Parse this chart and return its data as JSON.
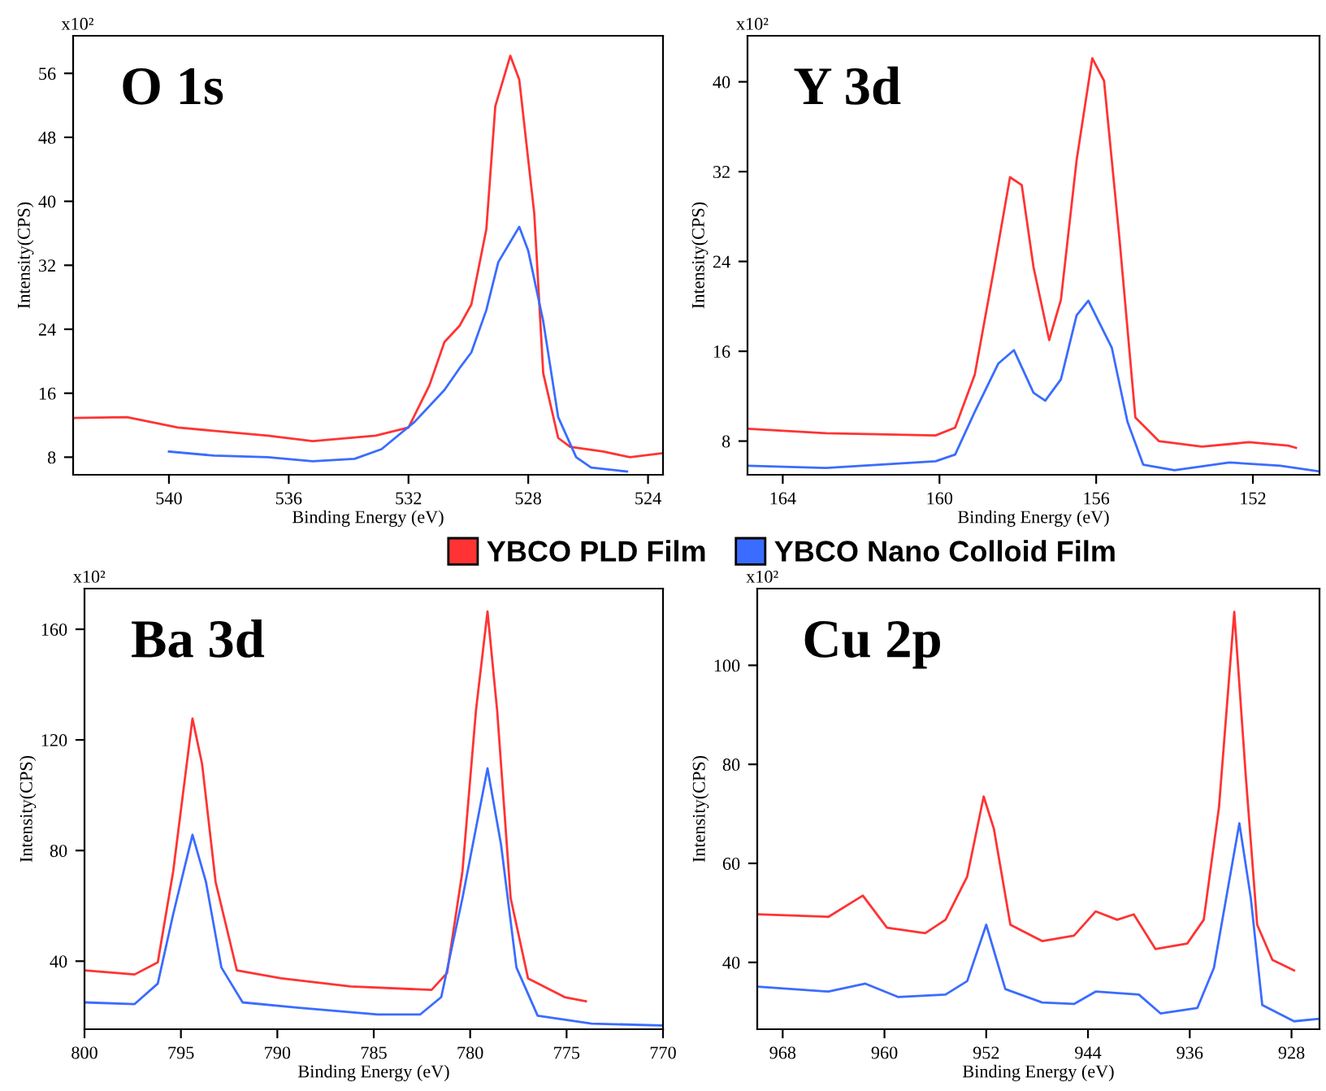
{
  "chart_data": [
    {
      "type": "line",
      "title": "O 1s",
      "xlabel": "Binding Energy (eV)",
      "ylabel": "Intensity(CPS)",
      "annotations": [
        "x10²"
      ],
      "xlim": [
        543.2,
        523.5
      ],
      "xticks": [
        540,
        536,
        532,
        528,
        524
      ],
      "ylim": [
        5.8,
        60.7
      ],
      "yticks": [
        8,
        16,
        24,
        32,
        40,
        48,
        56
      ],
      "series": [
        {
          "color": "#ff3333",
          "x": [
            543.2,
            541.4,
            539.7,
            536.7,
            535.2,
            533.1,
            532.0,
            531.3,
            530.8,
            530.3,
            529.9,
            529.4,
            529.1,
            528.6,
            528.3,
            527.8,
            527.5,
            527.0,
            526.6,
            525.5,
            524.6,
            523.5
          ],
          "values": [
            12.9,
            13.0,
            11.7,
            10.7,
            10.0,
            10.7,
            11.7,
            17.0,
            22.4,
            24.4,
            27.1,
            36.5,
            51.9,
            58.2,
            55.2,
            38.5,
            18.5,
            10.4,
            9.3,
            8.7,
            8.0,
            8.5
          ]
        },
        {
          "color": "#3a6cff",
          "x": [
            540.0,
            538.5,
            536.7,
            535.2,
            533.8,
            532.9,
            531.8,
            530.8,
            530.3,
            529.9,
            529.4,
            529.0,
            528.3,
            528.0,
            527.5,
            527.0,
            526.4,
            525.9,
            524.7
          ],
          "values": [
            8.7,
            8.2,
            8.0,
            7.5,
            7.8,
            9.0,
            12.4,
            16.4,
            19.1,
            21.1,
            26.4,
            32.4,
            36.8,
            33.8,
            25.0,
            13.0,
            8.0,
            6.7,
            6.2
          ]
        }
      ]
    },
    {
      "type": "line",
      "title": "Y 3d",
      "xlabel": "Binding Energy (eV)",
      "ylabel": "Intensity(CPS)",
      "annotations": [
        "x10²"
      ],
      "xlim": [
        164.9,
        150.3
      ],
      "xticks": [
        164,
        160,
        156,
        152
      ],
      "ylim": [
        5.0,
        44.1
      ],
      "yticks": [
        8,
        16,
        24,
        32,
        40
      ],
      "series": [
        {
          "color": "#ff3333",
          "x": [
            164.9,
            162.9,
            160.1,
            159.6,
            159.1,
            158.6,
            158.2,
            157.9,
            157.6,
            157.2,
            156.9,
            156.5,
            156.1,
            155.8,
            155.4,
            155.0,
            154.4,
            153.3,
            152.1,
            151.1,
            150.9
          ],
          "values": [
            9.1,
            8.7,
            8.5,
            9.2,
            13.9,
            23.5,
            31.5,
            30.8,
            23.5,
            17.0,
            20.6,
            33.0,
            42.1,
            40.1,
            25.8,
            10.1,
            8.0,
            7.5,
            7.9,
            7.6,
            7.4
          ]
        },
        {
          "color": "#3a6cff",
          "x": [
            164.9,
            162.9,
            160.1,
            159.6,
            159.1,
            158.5,
            158.1,
            157.6,
            157.3,
            156.9,
            156.5,
            156.2,
            155.6,
            155.2,
            154.8,
            154.0,
            152.6,
            151.3,
            150.3
          ],
          "values": [
            5.8,
            5.6,
            6.2,
            6.8,
            10.6,
            14.9,
            16.1,
            12.3,
            11.6,
            13.5,
            19.2,
            20.5,
            16.3,
            9.7,
            5.9,
            5.4,
            6.1,
            5.8,
            5.3
          ]
        }
      ]
    },
    {
      "type": "line",
      "title": "Ba 3d",
      "xlabel": "Binding Energy (eV)",
      "ylabel": "Intensity(CPS)",
      "annotations": [
        "x10²"
      ],
      "legend": "top",
      "xlim": [
        800,
        770
      ],
      "xticks": [
        800,
        795,
        790,
        785,
        780,
        775,
        770
      ],
      "ylim": [
        15.4,
        174.7
      ],
      "yticks": [
        40,
        80,
        120,
        160
      ],
      "series": [
        {
          "name": "YBCO PLD Film",
          "color": "#ff3333",
          "x": [
            800.0,
            797.4,
            796.2,
            795.4,
            794.7,
            794.4,
            793.9,
            793.2,
            792.1,
            789.8,
            786.2,
            782.0,
            781.2,
            780.4,
            779.7,
            779.1,
            778.6,
            777.9,
            777.0,
            775.1,
            774.0
          ],
          "values": [
            36.7,
            35.2,
            39.6,
            72.5,
            111.2,
            127.7,
            111.2,
            68.6,
            36.7,
            33.8,
            30.9,
            29.6,
            35.7,
            72.5,
            130.6,
            166.4,
            130.6,
            62.8,
            33.8,
            27.0,
            25.5
          ]
        },
        {
          "name": "YBCO Nano Colloid Film",
          "color": "#3a6cff",
          "x": [
            800.0,
            797.4,
            796.2,
            795.4,
            794.4,
            793.7,
            792.9,
            791.8,
            789.0,
            784.8,
            782.6,
            781.5,
            780.4,
            779.1,
            778.4,
            777.6,
            776.5,
            773.7,
            770.1
          ],
          "values": [
            25.1,
            24.5,
            31.9,
            57.0,
            85.7,
            68.6,
            37.7,
            25.1,
            23.2,
            20.7,
            20.7,
            27.0,
            62.8,
            109.7,
            82.2,
            37.7,
            20.3,
            17.4,
            16.8
          ]
        }
      ]
    },
    {
      "type": "line",
      "title": "Cu 2p",
      "xlabel": "Binding Energy (eV)",
      "ylabel": "Intensity(CPS)",
      "annotations": [
        "x10²"
      ],
      "xlim": [
        970.0,
        925.8
      ],
      "xticks": [
        968,
        960,
        952,
        944,
        936,
        928
      ],
      "ylim": [
        26.5,
        115.5
      ],
      "yticks": [
        40,
        60,
        80,
        100
      ],
      "series": [
        {
          "color": "#ff3333",
          "x": [
            970.0,
            964.4,
            961.7,
            959.8,
            956.8,
            955.2,
            953.5,
            952.2,
            951.4,
            950.1,
            947.6,
            945.1,
            943.4,
            941.7,
            940.4,
            938.7,
            936.2,
            934.9,
            933.7,
            932.5,
            931.6,
            930.7,
            929.5,
            927.8
          ],
          "values": [
            49.7,
            49.2,
            53.5,
            47.0,
            45.9,
            48.6,
            57.3,
            73.5,
            67.0,
            47.6,
            44.3,
            45.4,
            50.3,
            48.6,
            49.7,
            42.7,
            43.8,
            48.6,
            71.4,
            110.8,
            77.8,
            47.6,
            40.5,
            38.4
          ]
        },
        {
          "color": "#3a6cff",
          "x": [
            970.0,
            964.4,
            961.5,
            958.9,
            955.2,
            953.5,
            952.0,
            950.5,
            947.6,
            945.1,
            943.4,
            940.0,
            938.3,
            935.4,
            934.1,
            932.1,
            931.2,
            930.3,
            927.8,
            925.8
          ],
          "values": [
            35.1,
            34.1,
            35.7,
            33.0,
            33.5,
            36.2,
            47.6,
            34.6,
            31.9,
            31.6,
            34.1,
            33.5,
            29.7,
            30.8,
            38.9,
            68.1,
            53.0,
            31.4,
            28.1,
            28.6
          ]
        }
      ]
    }
  ]
}
